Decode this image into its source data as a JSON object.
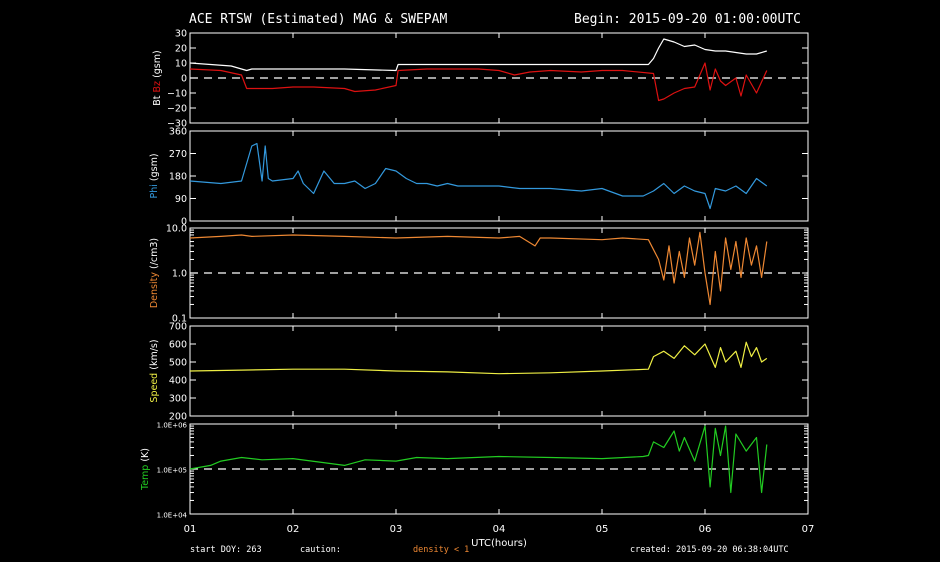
{
  "header": {
    "title": "ACE RTSW (Estimated) MAG & SWEPAM",
    "begin": "Begin: 2015-09-20 01:00:00UTC"
  },
  "footer": {
    "start_doy": "start DOY: 263",
    "caution": "caution:",
    "density_note": "density < 1",
    "created": "created: 2015-09-20 06:38:04UTC"
  },
  "colors": {
    "bt": "#ffffff",
    "bz": "#dd1111",
    "phi": "#3399dd",
    "density": "#ee8833",
    "speed": "#eeee44",
    "temp": "#22cc22",
    "axis": "#ffffff",
    "dashed": "#ffffff"
  },
  "chart_data": [
    {
      "type": "line",
      "panel": "mag",
      "ylabel_parts": [
        "Bt",
        "Bz",
        "(gsm)"
      ],
      "ylim": [
        -30,
        30
      ],
      "yticks": [
        "30",
        "20",
        "10",
        "0",
        "−10",
        "−20",
        "−30"
      ],
      "ytick_values": [
        30,
        20,
        10,
        0,
        -10,
        -20,
        -30
      ],
      "ref_line": 0,
      "series": [
        {
          "name": "Bt",
          "color_key": "bt",
          "x": [
            1.0,
            1.4,
            1.55,
            1.6,
            2.0,
            2.5,
            3.0,
            3.02,
            3.5,
            4.0,
            4.5,
            5.0,
            5.45,
            5.5,
            5.55,
            5.6,
            5.7,
            5.8,
            5.9,
            6.0,
            6.1,
            6.2,
            6.3,
            6.4,
            6.5,
            6.6
          ],
          "y": [
            10,
            8,
            5,
            6,
            6,
            6,
            5,
            9,
            9,
            9,
            9,
            9,
            9,
            13,
            20,
            26,
            24,
            21,
            22,
            19,
            18,
            18,
            17,
            16,
            16,
            18
          ]
        },
        {
          "name": "Bz",
          "color_key": "bz",
          "x": [
            1.0,
            1.3,
            1.5,
            1.55,
            1.8,
            2.0,
            2.2,
            2.5,
            2.6,
            2.8,
            3.0,
            3.02,
            3.3,
            3.6,
            3.8,
            4.0,
            4.15,
            4.3,
            4.5,
            4.8,
            5.0,
            5.2,
            5.5,
            5.55,
            5.6,
            5.7,
            5.8,
            5.9,
            6.0,
            6.05,
            6.1,
            6.15,
            6.2,
            6.3,
            6.35,
            6.4,
            6.5,
            6.6
          ],
          "y": [
            6,
            5,
            2,
            -7,
            -7,
            -6,
            -6,
            -7,
            -9,
            -8,
            -5,
            5,
            6,
            6,
            6,
            5,
            2,
            4,
            5,
            4,
            5,
            5,
            3,
            -15,
            -14,
            -10,
            -7,
            -6,
            10,
            -8,
            6,
            -2,
            -5,
            0,
            -12,
            2,
            -10,
            5
          ]
        }
      ]
    },
    {
      "type": "line",
      "panel": "phi",
      "ylabel_parts": [
        "Phi",
        "(gsm)"
      ],
      "ylim": [
        0,
        360
      ],
      "yticks": [
        "360",
        "270",
        "180",
        "90",
        "0"
      ],
      "ytick_values": [
        360,
        270,
        180,
        90,
        0
      ],
      "series": [
        {
          "name": "Phi",
          "color_key": "phi",
          "x": [
            1.0,
            1.3,
            1.5,
            1.6,
            1.65,
            1.7,
            1.73,
            1.76,
            1.8,
            2.0,
            2.05,
            2.1,
            2.2,
            2.3,
            2.4,
            2.5,
            2.6,
            2.7,
            2.8,
            2.9,
            3.0,
            3.1,
            3.2,
            3.3,
            3.4,
            3.5,
            3.6,
            3.8,
            4.0,
            4.2,
            4.5,
            4.8,
            5.0,
            5.2,
            5.4,
            5.5,
            5.6,
            5.7,
            5.8,
            5.9,
            6.0,
            6.05,
            6.1,
            6.2,
            6.3,
            6.4,
            6.5,
            6.6
          ],
          "y": [
            160,
            150,
            160,
            300,
            310,
            160,
            300,
            170,
            160,
            170,
            200,
            150,
            110,
            200,
            150,
            150,
            160,
            130,
            150,
            210,
            200,
            170,
            150,
            150,
            140,
            150,
            140,
            140,
            140,
            130,
            130,
            120,
            130,
            100,
            100,
            120,
            150,
            110,
            140,
            120,
            110,
            50,
            130,
            120,
            140,
            110,
            170,
            140
          ]
        }
      ]
    },
    {
      "type": "line",
      "panel": "density",
      "ylabel_parts": [
        "Density",
        "(/cm3)"
      ],
      "yscale": "log",
      "ylim": [
        0.1,
        10
      ],
      "yticks": [
        "10.0",
        "1.0",
        "0.1"
      ],
      "ytick_values": [
        10,
        1,
        0.1
      ],
      "ref_line": 1,
      "series": [
        {
          "name": "Density",
          "color_key": "density",
          "x": [
            1.0,
            1.3,
            1.5,
            1.6,
            2.0,
            2.5,
            3.0,
            3.5,
            4.0,
            4.2,
            4.35,
            4.4,
            4.5,
            5.0,
            5.2,
            5.45,
            5.55,
            5.6,
            5.65,
            5.7,
            5.75,
            5.8,
            5.85,
            5.9,
            5.95,
            6.0,
            6.05,
            6.1,
            6.15,
            6.2,
            6.25,
            6.3,
            6.35,
            6.4,
            6.45,
            6.5,
            6.55,
            6.6
          ],
          "y": [
            6,
            6.5,
            7,
            6.5,
            7,
            6.5,
            6,
            6.5,
            6,
            6.5,
            4,
            6,
            6,
            5.5,
            6,
            5.5,
            2,
            0.7,
            4,
            0.6,
            3,
            0.8,
            6,
            1.5,
            8,
            1,
            0.2,
            3,
            0.4,
            6,
            1.2,
            5,
            0.8,
            6,
            1.5,
            4,
            0.8,
            5
          ]
        }
      ]
    },
    {
      "type": "line",
      "panel": "speed",
      "ylabel_parts": [
        "Speed",
        "(km/s)"
      ],
      "ylim": [
        200,
        700
      ],
      "yticks": [
        "700",
        "600",
        "500",
        "400",
        "300",
        "200"
      ],
      "ytick_values": [
        700,
        600,
        500,
        400,
        300,
        200
      ],
      "series": [
        {
          "name": "Speed",
          "color_key": "speed",
          "x": [
            1.0,
            1.5,
            2.0,
            2.5,
            3.0,
            3.5,
            4.0,
            4.5,
            5.0,
            5.45,
            5.5,
            5.6,
            5.7,
            5.8,
            5.9,
            6.0,
            6.1,
            6.15,
            6.2,
            6.3,
            6.35,
            6.4,
            6.45,
            6.5,
            6.55,
            6.6
          ],
          "y": [
            450,
            455,
            460,
            460,
            450,
            445,
            435,
            440,
            450,
            460,
            530,
            560,
            520,
            590,
            540,
            600,
            470,
            580,
            500,
            560,
            470,
            610,
            530,
            580,
            500,
            520
          ]
        }
      ]
    },
    {
      "type": "line",
      "panel": "temp",
      "ylabel_parts": [
        "Temp",
        "(K)"
      ],
      "yscale": "log",
      "ylim": [
        10000,
        1000000
      ],
      "yticks": [
        "1.0E+06",
        "1.0E+05",
        "1.0E+04"
      ],
      "ytick_values": [
        1000000,
        100000,
        10000
      ],
      "ref_line": 100000,
      "series": [
        {
          "name": "Temp",
          "color_key": "temp",
          "x": [
            1.0,
            1.2,
            1.3,
            1.5,
            1.7,
            2.0,
            2.5,
            2.7,
            3.0,
            3.2,
            3.5,
            4.0,
            4.5,
            5.0,
            5.4,
            5.45,
            5.5,
            5.6,
            5.7,
            5.75,
            5.8,
            5.9,
            6.0,
            6.05,
            6.1,
            6.15,
            6.2,
            6.25,
            6.3,
            6.4,
            6.5,
            6.55,
            6.6
          ],
          "y": [
            100000,
            120000,
            150000,
            180000,
            160000,
            170000,
            120000,
            160000,
            150000,
            180000,
            170000,
            190000,
            180000,
            170000,
            190000,
            200000,
            400000,
            300000,
            700000,
            250000,
            500000,
            150000,
            900000,
            40000,
            800000,
            200000,
            900000,
            30000,
            600000,
            250000,
            500000,
            30000,
            350000
          ]
        }
      ]
    }
  ],
  "x_axis": {
    "xlim": [
      1,
      7
    ],
    "ticks": [
      "01",
      "02",
      "03",
      "04",
      "05",
      "06",
      "07"
    ],
    "tick_values": [
      1,
      2,
      3,
      4,
      5,
      6,
      7
    ],
    "label": "UTC(hours)"
  }
}
